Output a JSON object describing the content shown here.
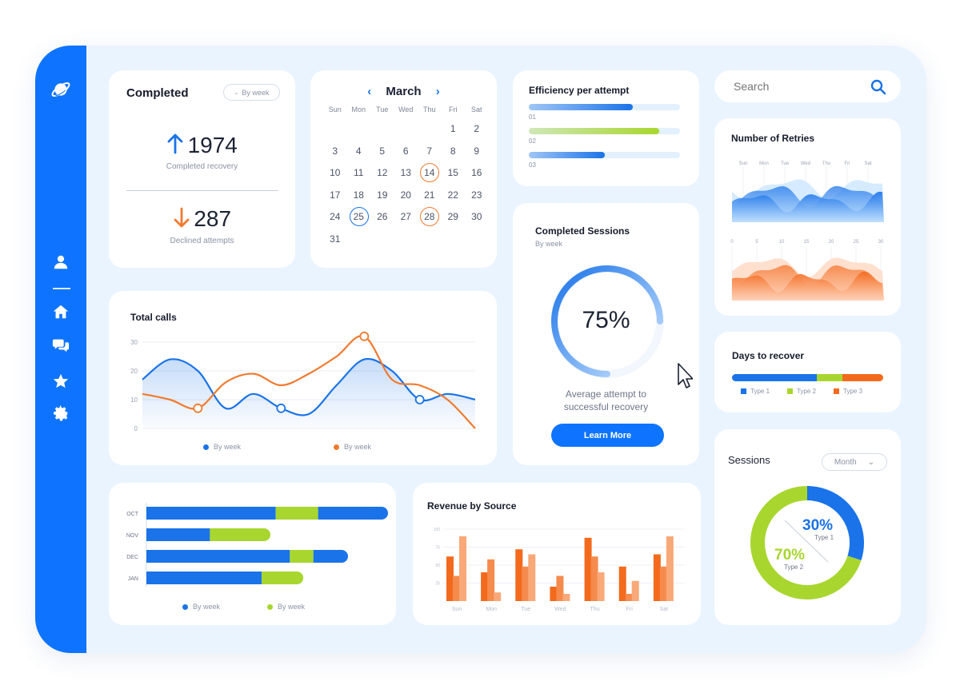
{
  "sidebar": {
    "logo_icon": "planet-icon",
    "items": [
      {
        "icon": "user-icon"
      },
      {
        "icon": "home-icon"
      },
      {
        "icon": "chat-icon"
      },
      {
        "icon": "star-icon"
      },
      {
        "icon": "gear-icon"
      }
    ]
  },
  "completed": {
    "title": "Completed",
    "filter": "By week",
    "recovery_value": "1974",
    "recovery_label": "Completed recovery",
    "declined_value": "287",
    "declined_label": "Declined attempts",
    "up_color": "#1a73e8",
    "down_color": "#f07a2e"
  },
  "calendar": {
    "month": "March",
    "weekdays": [
      "Sun",
      "Mon",
      "Tue",
      "Wed",
      "Thu",
      "Fri",
      "Sat"
    ],
    "weeks": [
      [
        "",
        "",
        "",
        "",
        "",
        "1",
        "2"
      ],
      [
        "3",
        "4",
        "5",
        "6",
        "7",
        "8",
        "9"
      ],
      [
        "10",
        "11",
        "12",
        "13",
        "14",
        "15",
        "16"
      ],
      [
        "17",
        "18",
        "19",
        "20",
        "21",
        "22",
        "23"
      ],
      [
        "24",
        "25",
        "26",
        "27",
        "28",
        "29",
        "30"
      ],
      [
        "31",
        "",
        "",
        "",
        "",
        "",
        ""
      ]
    ],
    "highlighted_orange": [
      "14",
      "28"
    ],
    "highlighted_blue": [
      "25"
    ]
  },
  "efficiency": {
    "title": "Efficiency per attempt",
    "bars": [
      {
        "label": "01",
        "value": 0.69,
        "color": "#1a73e8"
      },
      {
        "label": "02",
        "value": 0.86,
        "color": "#a8d62e"
      },
      {
        "label": "03",
        "value": 0.5,
        "color": "#1a73e8"
      }
    ]
  },
  "search": {
    "placeholder": "Search"
  },
  "retries": {
    "title": "Number of Retries",
    "top_ticks": [
      "Sun",
      "Mon",
      "Tue",
      "Wed",
      "Thu",
      "Fri",
      "Sat"
    ],
    "bottom_ticks": [
      "0",
      "5",
      "10",
      "15",
      "20",
      "25",
      "30"
    ]
  },
  "sessions_card": {
    "title": "Completed Sessions",
    "subtitle": "By week",
    "percent": "75%",
    "percent_value": 0.75,
    "caption": "Average attempt to successful recovery",
    "button": "Learn More"
  },
  "total_calls": {
    "title": "Total calls",
    "legend": [
      {
        "name": "By week",
        "color": "#1a73e8"
      },
      {
        "name": "By week",
        "color": "#f07a2e"
      }
    ]
  },
  "days_recover": {
    "title": "Days to recover",
    "segments": [
      {
        "name": "Type 1",
        "value": 0.56,
        "color": "#1a73e8"
      },
      {
        "name": "Type 2",
        "value": 0.17,
        "color": "#a8d62e"
      },
      {
        "name": "Type 3",
        "value": 0.27,
        "color": "#f36a1d"
      }
    ]
  },
  "monthly_bars": {
    "legend": [
      {
        "name": "By week",
        "color": "#1a73e8"
      },
      {
        "name": "By week",
        "color": "#a8d62e"
      }
    ]
  },
  "revenue": {
    "title": "Revenue by Source"
  },
  "sessions_donut": {
    "title": "Sessions",
    "filter": "Month",
    "slices": [
      {
        "name": "Type 1",
        "percent": "30%",
        "value": 30,
        "color": "#1a73e8"
      },
      {
        "name": "Type 2",
        "percent": "70%",
        "value": 70,
        "color": "#a8d62e"
      }
    ]
  },
  "chart_data": [
    {
      "type": "line",
      "title": "Total calls",
      "ylim": [
        0,
        30
      ],
      "yticks": [
        "0",
        "10",
        "20",
        "30"
      ],
      "x": [
        0,
        1,
        2,
        3,
        4,
        5,
        6,
        7,
        8,
        9,
        10,
        11,
        12
      ],
      "series": [
        {
          "name": "By week",
          "color": "#1a73e8",
          "values": [
            17,
            24,
            20,
            7,
            12,
            7,
            5,
            15,
            24,
            20,
            10,
            12,
            10
          ]
        },
        {
          "name": "By week",
          "color": "#f07a2e",
          "values": [
            12,
            10,
            7,
            16,
            19,
            15,
            19,
            25,
            32,
            17,
            15,
            10,
            0
          ]
        }
      ]
    },
    {
      "type": "bar",
      "orientation": "horizontal",
      "stacked": true,
      "categories": [
        "OCT",
        "NOV",
        "DEC",
        "JAN"
      ],
      "series": [
        {
          "name": "By week",
          "color": "#1a73e8",
          "values": [
            55,
            27,
            61,
            49
          ]
        },
        {
          "name": "By week",
          "color": "#a8d62e",
          "values": [
            18,
            23,
            10,
            15
          ]
        },
        {
          "name": "By week",
          "color": "#1a73e8",
          "values": [
            27,
            0,
            12,
            0
          ]
        }
      ],
      "xlim": [
        0,
        100
      ]
    },
    {
      "type": "bar",
      "title": "Revenue by Source",
      "categories": [
        "Sun",
        "Mon",
        "Tue",
        "Wed",
        "Thu",
        "Fri",
        "Sat"
      ],
      "ylim": [
        0,
        100
      ],
      "yticks": [
        "100",
        "75",
        "50",
        "25"
      ],
      "series": [
        {
          "name": "",
          "color": "#f36a1d",
          "values": [
            62,
            40,
            72,
            20,
            88,
            48,
            65
          ]
        },
        {
          "name": "",
          "color": "#f58b4d",
          "values": [
            35,
            58,
            48,
            35,
            62,
            10,
            48
          ]
        },
        {
          "name": "",
          "color": "#f9a878",
          "values": [
            90,
            12,
            65,
            10,
            40,
            28,
            90
          ]
        }
      ]
    }
  ]
}
